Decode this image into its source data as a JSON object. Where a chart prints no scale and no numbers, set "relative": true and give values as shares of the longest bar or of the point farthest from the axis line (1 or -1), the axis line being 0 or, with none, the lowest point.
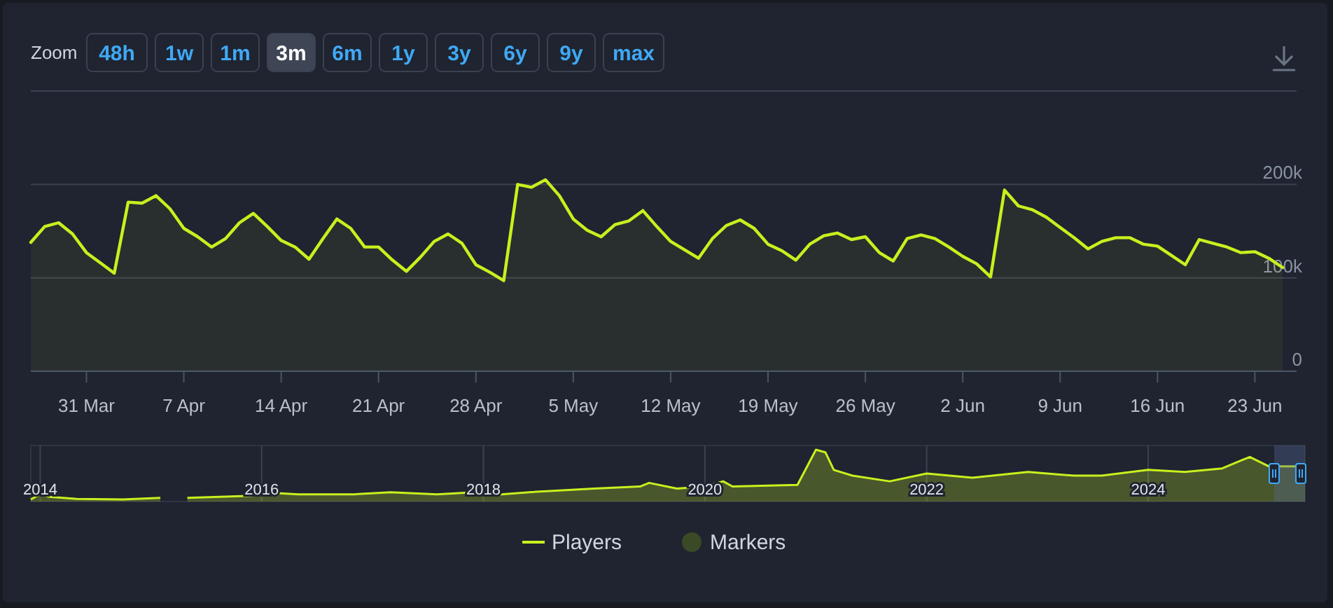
{
  "chart_data": [
    {
      "type": "area",
      "annotations": [
        "Zoom",
        "48h",
        "1w",
        "1m",
        "3m",
        "6m",
        "1y",
        "3y",
        "6y",
        "9y",
        "max"
      ],
      "x": [
        "--03-27",
        "--03-28",
        "--03-29",
        "--03-30",
        "--03-31",
        "--04-01",
        "--04-02",
        "--04-03",
        "--04-04",
        "--04-05",
        "--04-06",
        "--04-07",
        "--04-08",
        "--04-09",
        "--04-10",
        "--04-11",
        "--04-12",
        "--04-13",
        "--04-14",
        "--04-15",
        "--04-16",
        "--04-17",
        "--04-18",
        "--04-19",
        "--04-20",
        "--04-21",
        "--04-22",
        "--04-23",
        "--04-24",
        "--04-25",
        "--04-26",
        "--04-27",
        "--04-28",
        "--04-29",
        "--04-30",
        "--05-01",
        "--05-02",
        "--05-03",
        "--05-04",
        "--05-05",
        "--05-06",
        "--05-07",
        "--05-08",
        "--05-09",
        "--05-10",
        "--05-11",
        "--05-12",
        "--05-13",
        "--05-14",
        "--05-15",
        "--05-16",
        "--05-17",
        "--05-18",
        "--05-19",
        "--05-20",
        "--05-21",
        "--05-22",
        "--05-23",
        "--05-24",
        "--05-25",
        "--05-26",
        "--05-27",
        "--05-28",
        "--05-29",
        "--05-30",
        "--05-31",
        "--06-01",
        "--06-02",
        "--06-03",
        "--06-04",
        "--06-05",
        "--06-06",
        "--06-07",
        "--06-08",
        "--06-09",
        "--06-10",
        "--06-11",
        "--06-12",
        "--06-13",
        "--06-14",
        "--06-15",
        "--06-16",
        "--06-17",
        "--06-18",
        "--06-19",
        "--06-20",
        "--06-21",
        "--06-22",
        "--06-23",
        "--06-24",
        "--06-25"
      ],
      "series": [
        {
          "name": "Players",
          "color": "#c8f01e",
          "values": [
            138000,
            155000,
            159000,
            147000,
            127000,
            116000,
            105000,
            181000,
            180000,
            188000,
            174000,
            153000,
            144000,
            133000,
            142000,
            159000,
            169000,
            155000,
            140000,
            133000,
            120000,
            142000,
            163000,
            153000,
            133000,
            133000,
            119000,
            107000,
            122000,
            139000,
            147000,
            137000,
            114000,
            106000,
            97000,
            200000,
            197000,
            205000,
            188000,
            163000,
            151000,
            144000,
            157000,
            161000,
            172000,
            155000,
            139000,
            130000,
            121000,
            142000,
            156000,
            162000,
            153000,
            136000,
            129000,
            119000,
            136000,
            145000,
            148000,
            141000,
            144000,
            127000,
            118000,
            142000,
            146000,
            142000,
            133000,
            123000,
            115000,
            101000,
            194000,
            177000,
            173000,
            165000,
            154000,
            143000,
            131000,
            139000,
            143000,
            143000,
            136000,
            134000,
            124000,
            114000,
            141000,
            137000,
            133000,
            127000,
            128000,
            121000,
            111000
          ]
        },
        {
          "name": "Markers",
          "type": "scatter",
          "color": "#3b4a26",
          "marker": "circle",
          "values": [
            null,
            null,
            null,
            null,
            null,
            null,
            null,
            null,
            null,
            null,
            null,
            null,
            null,
            null,
            null,
            null,
            null,
            null,
            null,
            null,
            null,
            null,
            null,
            null,
            null,
            null,
            null,
            null,
            null,
            null,
            null,
            null,
            null,
            null,
            null,
            null,
            null,
            null,
            null,
            null,
            null,
            null,
            null,
            null,
            null,
            null,
            null,
            null,
            null,
            null,
            null,
            null,
            null,
            null,
            null,
            null,
            null,
            null,
            null,
            null,
            null,
            null,
            null,
            null,
            null,
            null,
            null,
            null,
            null,
            null,
            null,
            null,
            null,
            null,
            null,
            null,
            null,
            null,
            null,
            null,
            null,
            null,
            null,
            null,
            null,
            null,
            null,
            null,
            null,
            null,
            null
          ]
        }
      ],
      "xlim": [
        "--03-27",
        "--06-26"
      ],
      "ylim": [
        0,
        300000
      ],
      "xticks": [
        {
          "value": "--03-31",
          "label": "31 Mar"
        },
        {
          "value": "--04-07",
          "label": "7 Apr"
        },
        {
          "value": "--04-14",
          "label": "14 Apr"
        },
        {
          "value": "--04-21",
          "label": "21 Apr"
        },
        {
          "value": "--04-28",
          "label": "28 Apr"
        },
        {
          "value": "--05-05",
          "label": "5 May"
        },
        {
          "value": "--05-12",
          "label": "12 May"
        },
        {
          "value": "--05-19",
          "label": "19 May"
        },
        {
          "value": "--05-26",
          "label": "26 May"
        },
        {
          "value": "--06-02",
          "label": "2 Jun"
        },
        {
          "value": "--06-09",
          "label": "9 Jun"
        },
        {
          "value": "--06-16",
          "label": "16 Jun"
        },
        {
          "value": "--06-23",
          "label": "23 Jun"
        }
      ],
      "yticks": [
        0,
        {
          "value": 100000,
          "label": "100k"
        },
        {
          "value": 200000,
          "label": "200k"
        },
        {
          "value": 300000,
          "label": null
        }
      ],
      "grid": "y",
      "legend": "bottom"
    },
    {
      "type": "area",
      "relative": true,
      "color": "#c8f01e",
      "grid": "x",
      "x": [
        "2013-12",
        "2014-01",
        "2014-02",
        "2014-05",
        "2014-10",
        "2015-02",
        "2015-03",
        "2015-05",
        "2015-12",
        "2016-01",
        "2016-05",
        "2016-11",
        "2017-03",
        "2017-08",
        "2017-12",
        "2018-03",
        "2018-06",
        "2019-01",
        "2019-06",
        "2019-07",
        "2019-10",
        "2020-01",
        "2020-03",
        "2020-04",
        "2020-11",
        "2021-01",
        "2021-02",
        "2021-03",
        "2021-05",
        "2021-09",
        "2022-01",
        "2022-06",
        "2022-12",
        "2023-05",
        "2023-08",
        "2024-01",
        "2024-05",
        "2024-09",
        "2024-12",
        "2025-02",
        "2025-05",
        "2025-06"
      ],
      "values": [
        0.04,
        0.14,
        0.09,
        0.05,
        0.04,
        0.07,
        null,
        0.07,
        0.11,
        0.18,
        0.14,
        0.14,
        0.18,
        0.14,
        0.18,
        0.14,
        0.18,
        0.25,
        0.29,
        0.36,
        0.25,
        0.29,
        0.39,
        0.29,
        0.32,
        1,
        0.95,
        0.61,
        0.5,
        0.39,
        0.54,
        0.46,
        0.57,
        0.5,
        0.5,
        0.61,
        0.57,
        0.64,
        0.86,
        0.68,
        0.68,
        0.64
      ],
      "xlim": [
        "2013-12",
        "2025-06"
      ],
      "xticks": [
        {
          "value": "2014",
          "label": "2014"
        },
        {
          "value": "2016",
          "label": "2016"
        },
        {
          "value": "2018",
          "label": "2018"
        },
        {
          "value": "2020",
          "label": "2020"
        },
        {
          "value": "2022",
          "label": "2022"
        },
        {
          "value": "2024",
          "label": "2024"
        }
      ]
    }
  ]
}
